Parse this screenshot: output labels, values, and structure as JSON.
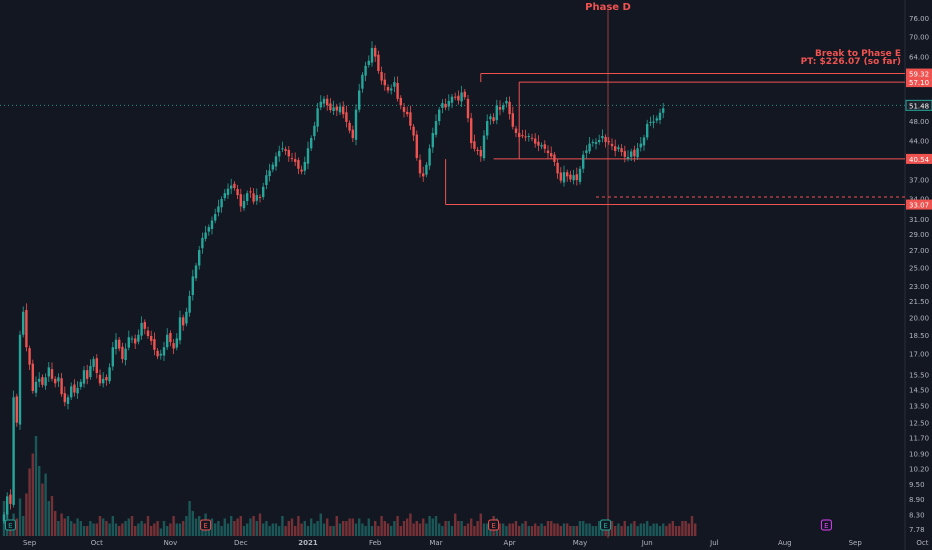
{
  "chart_data": {
    "type": "candlestick",
    "title": "",
    "annotations": {
      "phase_label": "Phase D",
      "break_line1": "Break to Phase E",
      "break_line2": "PT: $226.07 (so far)"
    },
    "last_price": "51.48",
    "levels": [
      {
        "label": "59.32",
        "value": 59.32
      },
      {
        "label": "57.10",
        "value": 57.1
      },
      {
        "label": "40.54",
        "value": 40.54
      },
      {
        "label": "33.07",
        "value": 33.07
      }
    ],
    "y_ticks": [
      {
        "label": "76.00",
        "v": 76.0
      },
      {
        "label": "70.00",
        "v": 70.0
      },
      {
        "label": "64.00",
        "v": 64.0
      },
      {
        "label": "57.10",
        "v": 57.1
      },
      {
        "label": "51.48",
        "v": 51.48
      },
      {
        "label": "48.00",
        "v": 48.0
      },
      {
        "label": "44.00",
        "v": 44.0
      },
      {
        "label": "40.54",
        "v": 40.54
      },
      {
        "label": "37.00",
        "v": 37.0
      },
      {
        "label": "34.00",
        "v": 34.0
      },
      {
        "label": "31.00",
        "v": 31.0
      },
      {
        "label": "29.00",
        "v": 29.0
      },
      {
        "label": "27.00",
        "v": 27.0
      },
      {
        "label": "25.00",
        "v": 25.0
      },
      {
        "label": "23.00",
        "v": 23.0
      },
      {
        "label": "21.50",
        "v": 21.5
      },
      {
        "label": "20.00",
        "v": 20.0
      },
      {
        "label": "18.50",
        "v": 18.5
      },
      {
        "label": "17.00",
        "v": 17.0
      },
      {
        "label": "15.50",
        "v": 15.5
      },
      {
        "label": "14.50",
        "v": 14.5
      },
      {
        "label": "13.50",
        "v": 13.5
      },
      {
        "label": "12.50",
        "v": 12.5
      },
      {
        "label": "11.70",
        "v": 11.7
      },
      {
        "label": "10.90",
        "v": 10.9
      },
      {
        "label": "10.20",
        "v": 10.2
      },
      {
        "label": "9.50",
        "v": 9.5
      },
      {
        "label": "8.90",
        "v": 8.9
      },
      {
        "label": "8.30",
        "v": 8.3
      },
      {
        "label": "7.78",
        "v": 7.78
      }
    ],
    "x_ticks": [
      {
        "label": "Sep",
        "bar": 8
      },
      {
        "label": "Oct",
        "bar": 29
      },
      {
        "label": "Nov",
        "bar": 52
      },
      {
        "label": "Dec",
        "bar": 74
      },
      {
        "label": "2021",
        "bar": 95
      },
      {
        "label": "Feb",
        "bar": 116
      },
      {
        "label": "Mar",
        "bar": 135
      },
      {
        "label": "Apr",
        "bar": 158
      },
      {
        "label": "May",
        "bar": 180
      },
      {
        "label": "Jun",
        "bar": 201
      },
      {
        "label": "Jul",
        "bar": 222
      },
      {
        "label": "Aug",
        "bar": 244
      },
      {
        "label": "Sep",
        "bar": 266
      },
      {
        "label": "Oct",
        "bar": 287
      }
    ],
    "earnings_markers": [
      {
        "label": "E",
        "bar": 2,
        "color": "#26a69a"
      },
      {
        "label": "E",
        "bar": 63,
        "color": "#ef5350"
      },
      {
        "label": "E",
        "bar": 153,
        "color": "#ef5350"
      },
      {
        "label": "E",
        "bar": 188,
        "color": "#26a69a"
      },
      {
        "label": "E",
        "bar": 257,
        "color": "#e040fb"
      }
    ],
    "closes": [
      8.3,
      9.0,
      8.7,
      14.0,
      12.5,
      18.5,
      20.5,
      17.5,
      16.2,
      14.4,
      15.0,
      15.2,
      14.8,
      15.3,
      16.0,
      15.2,
      14.9,
      15.3,
      14.2,
      13.7,
      14.0,
      14.7,
      14.3,
      14.6,
      15.0,
      15.8,
      15.2,
      16.1,
      16.6,
      15.6,
      14.9,
      15.2,
      15.1,
      16.0,
      17.5,
      18.1,
      17.4,
      16.6,
      17.4,
      18.3,
      18.2,
      17.8,
      18.5,
      19.5,
      19.0,
      18.4,
      18.0,
      17.3,
      16.8,
      17.0,
      17.5,
      18.5,
      17.9,
      17.4,
      18.2,
      20.0,
      19.3,
      20.5,
      22.0,
      24.0,
      25.2,
      27.0,
      28.5,
      29.2,
      29.9,
      30.8,
      31.7,
      32.8,
      33.9,
      34.8,
      35.5,
      36.0,
      35.6,
      34.5,
      32.8,
      33.6,
      34.8,
      34.9,
      33.5,
      34.5,
      34.2,
      35.8,
      37.7,
      38.5,
      39.5,
      41.0,
      42.0,
      42.5,
      42.0,
      41.0,
      40.5,
      40.0,
      38.8,
      38.3,
      40.0,
      42.5,
      44.5,
      47.0,
      50.8,
      52.3,
      53.0,
      51.5,
      50.4,
      51.0,
      50.3,
      51.2,
      49.5,
      47.8,
      46.0,
      44.5,
      50.5,
      55.0,
      59.0,
      61.4,
      62.8,
      66.5,
      64.0,
      60.0,
      57.5,
      56.3,
      55.0,
      55.5,
      57.1,
      53.0,
      51.5,
      50.0,
      49.5,
      47.0,
      45.0,
      40.7,
      38.0,
      37.5,
      39.5,
      42.5,
      45.5,
      48.0,
      50.5,
      52.0,
      51.0,
      52.5,
      53.5,
      53.3,
      52.6,
      54.5,
      53.4,
      48.6,
      43.5,
      42.4,
      42.0,
      41.0,
      45.0,
      48.0,
      49.0,
      48.0,
      51.5,
      50.5,
      51.5,
      52.5,
      49.5,
      46.8,
      45.5,
      44.7,
      45.0,
      44.7,
      44.9,
      44.4,
      43.4,
      43.0,
      43.1,
      42.4,
      41.6,
      41.0,
      40.0,
      38.0,
      36.8,
      38.2,
      37.5,
      37.0,
      37.7,
      36.9,
      38.8,
      41.3,
      42.1,
      43.4,
      43.7,
      43.7,
      44.1,
      44.9,
      43.7,
      43.7,
      42.9,
      42.0,
      42.7,
      41.8,
      40.9,
      40.9,
      41.9,
      41.0,
      42.5,
      43.4,
      44.6,
      47.4,
      47.8,
      47.9,
      48.6,
      49.8,
      50.8
    ],
    "volumes": [
      14,
      10,
      6,
      9,
      7,
      15,
      8,
      17,
      27,
      33,
      40,
      28,
      21,
      25,
      14,
      16,
      10,
      6,
      9,
      7,
      8,
      6,
      5,
      7,
      6,
      4,
      4,
      6,
      5,
      5,
      8,
      7,
      6,
      5,
      8,
      5,
      4,
      5,
      6,
      7,
      8,
      4,
      5,
      6,
      5,
      8,
      4,
      5,
      6,
      3,
      6,
      4,
      5,
      8,
      5,
      5,
      6,
      8,
      14,
      10,
      7,
      8,
      5,
      9,
      6,
      7,
      5,
      6,
      4,
      7,
      5,
      8,
      6,
      7,
      8,
      4,
      5,
      7,
      8,
      6,
      9,
      5,
      6,
      4,
      5,
      5,
      4,
      8,
      4,
      6,
      7,
      4,
      8,
      5,
      6,
      4,
      7,
      5,
      6,
      9,
      5,
      7,
      4,
      4,
      8,
      5,
      6,
      6,
      7,
      7,
      5,
      7,
      5,
      4,
      7,
      4,
      6,
      4,
      8,
      6,
      5,
      4,
      6,
      8,
      4,
      6,
      7,
      9,
      5,
      6,
      5,
      7,
      5,
      8,
      7,
      8,
      5,
      4,
      6,
      6,
      4,
      9,
      6,
      6,
      4,
      5,
      7,
      4,
      6,
      9,
      5,
      5,
      6,
      8,
      7,
      5,
      5,
      4,
      5,
      5,
      6,
      4,
      5,
      6,
      4,
      4,
      5,
      4,
      5,
      4,
      6,
      6,
      5,
      5,
      4,
      5,
      5,
      4,
      4,
      4,
      6,
      6,
      5,
      5,
      4,
      4,
      6,
      5,
      5,
      5,
      6,
      4,
      5,
      4,
      6,
      4,
      5,
      6,
      4,
      5,
      5,
      6,
      4,
      5,
      5,
      4,
      5,
      4,
      5,
      6,
      4,
      4,
      6,
      6,
      5,
      8,
      5
    ]
  }
}
